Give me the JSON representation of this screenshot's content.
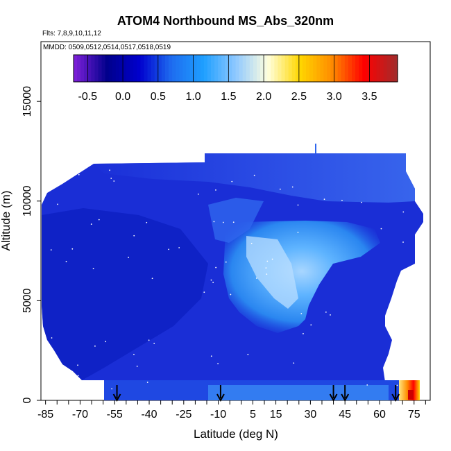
{
  "chart_data": {
    "type": "heatmap",
    "title": "ATOM4 Northbound MS_Abs_320nm",
    "flights_note": "Flts: 7,8,9,10,11,12",
    "dates_note": "MMDD: 0509,0512,0514,0517,0518,0519",
    "xlabel": "Latitude (deg N)",
    "ylabel": "Altitude (m)",
    "xlim": [
      -87,
      82
    ],
    "ylim": [
      0,
      18000
    ],
    "x_ticks": [
      -85,
      -70,
      -55,
      -40,
      -25,
      -10,
      5,
      15,
      30,
      45,
      60,
      75
    ],
    "x_minor_ticks": [
      -80,
      -75,
      -65,
      -60,
      -50,
      -45,
      -35,
      -30,
      -20,
      -15,
      -5,
      0,
      10,
      20,
      25,
      35,
      40,
      50,
      55,
      65,
      70,
      80
    ],
    "y_ticks": [
      0,
      5000,
      10000,
      15000
    ],
    "colorbar": {
      "range": [
        -0.7,
        3.9
      ],
      "ticks": [
        -0.5,
        0.0,
        0.5,
        1.0,
        1.5,
        2.0,
        2.5,
        3.0,
        3.5
      ],
      "tick_labels": [
        "-0.5",
        "0.0",
        "0.5",
        "1.0",
        "1.5",
        "2.0",
        "2.5",
        "3.0",
        "3.5"
      ],
      "colors": [
        "#7a1fd6",
        "#00008b",
        "#0000cd",
        "#1e6cf0",
        "#1e9fff",
        "#8ec8ff",
        "#ffffe0",
        "#ffd700",
        "#ff8c00",
        "#ff0000",
        "#a52a2a"
      ]
    },
    "surface_arrows_lat": [
      -54,
      -9,
      40,
      45,
      67
    ],
    "field_regions": [
      {
        "region": "background",
        "value": 0.2
      },
      {
        "region": "upper lobe 8000-12000 m",
        "value": 0.35
      },
      {
        "region": "plume 3000-9000 m, lat -5 to 25",
        "value": 1.1
      },
      {
        "region": "plume core near lat 8, 7000 m",
        "value": 1.4
      },
      {
        "region": "near-surface lat 70-80",
        "value": 3.6
      }
    ]
  }
}
